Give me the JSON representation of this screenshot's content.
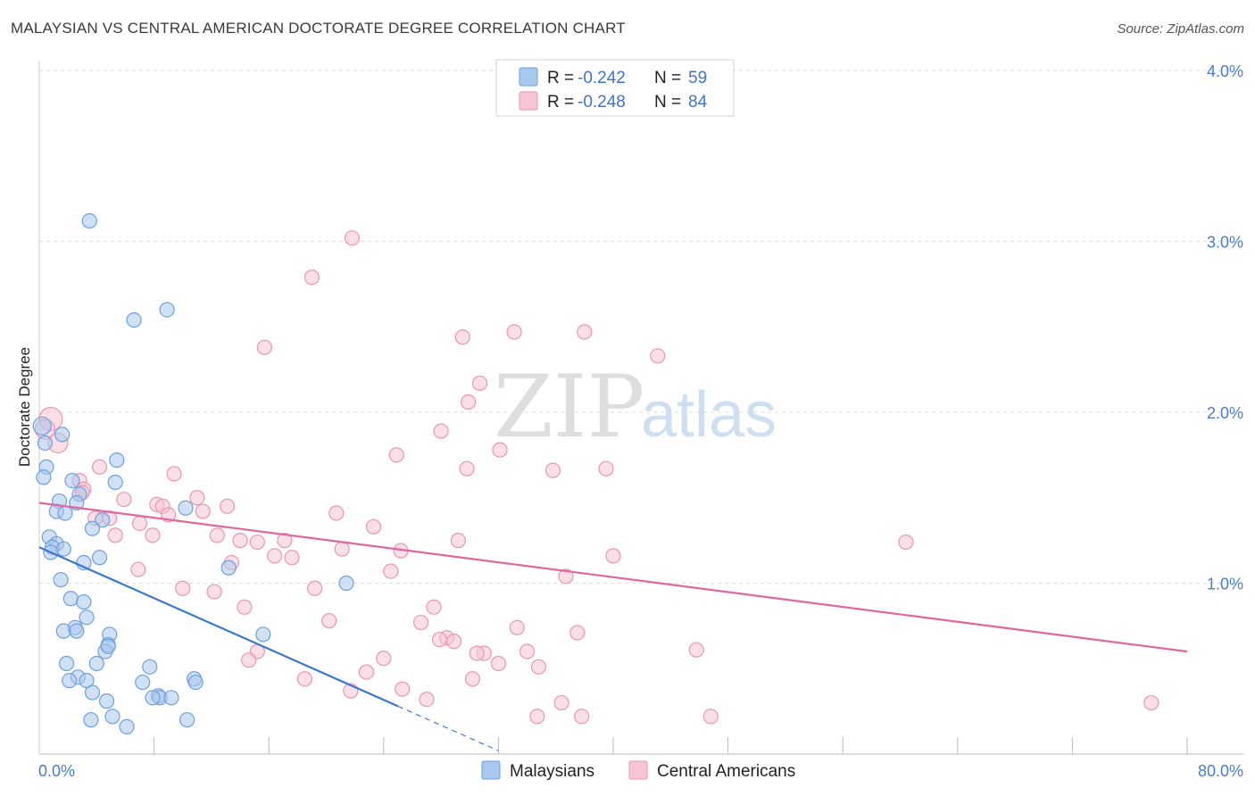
{
  "header": {
    "title": "MALAYSIAN VS CENTRAL AMERICAN DOCTORATE DEGREE CORRELATION CHART",
    "source": "Source: ZipAtlas.com"
  },
  "watermark": {
    "zip": "ZIP",
    "atlas": "atlas"
  },
  "colors": {
    "blue_fill": "#a9c8ef",
    "blue_stroke": "#6f9fdc",
    "blue_line": "#3a78d0",
    "pink_fill": "#f6c4d4",
    "pink_stroke": "#e996b2",
    "pink_line": "#e0679a",
    "grid": "#dddddd",
    "tick_text": "#4a7cc9"
  },
  "legend": {
    "rows": [
      {
        "r_label": "R =",
        "r_value": "-0.242",
        "n_label": "N =",
        "n_value": "59"
      },
      {
        "r_label": "R =",
        "r_value": "-0.248",
        "n_label": "N =",
        "n_value": "84"
      }
    ]
  },
  "chart_data": {
    "type": "scatter",
    "title": "MALAYSIAN VS CENTRAL AMERICAN DOCTORATE DEGREE CORRELATION CHART",
    "xlabel": "",
    "ylabel": "Doctorate Degree",
    "xlim": [
      0,
      80
    ],
    "ylim": [
      0,
      4.2
    ],
    "x_tick_labels": [
      "0.0%",
      "80.0%"
    ],
    "y_ticks": [
      1.0,
      2.0,
      3.0,
      4.0
    ],
    "y_tick_labels": [
      "1.0%",
      "2.0%",
      "3.0%",
      "4.0%"
    ],
    "grid": true,
    "series": [
      {
        "name": "Malaysians",
        "trend": {
          "x0": 0,
          "y0": 1.21,
          "x1": 25,
          "y1": 0.28,
          "dash_to_x": 32
        },
        "points": [
          [
            3.5,
            3.12
          ],
          [
            6.6,
            2.54
          ],
          [
            8.9,
            2.6
          ],
          [
            0.2,
            1.92
          ],
          [
            0.4,
            1.82
          ],
          [
            1.6,
            1.87
          ],
          [
            0.5,
            1.68
          ],
          [
            0.3,
            1.62
          ],
          [
            2.3,
            1.6
          ],
          [
            2.8,
            1.52
          ],
          [
            1.4,
            1.48
          ],
          [
            2.6,
            1.47
          ],
          [
            1.2,
            1.42
          ],
          [
            1.8,
            1.41
          ],
          [
            4.4,
            1.37
          ],
          [
            5.3,
            1.59
          ],
          [
            5.4,
            1.72
          ],
          [
            10.2,
            1.44
          ],
          [
            0.7,
            1.27
          ],
          [
            1.2,
            1.23
          ],
          [
            0.9,
            1.21
          ],
          [
            1.7,
            1.2
          ],
          [
            3.7,
            1.32
          ],
          [
            4.2,
            1.15
          ],
          [
            3.1,
            1.12
          ],
          [
            0.8,
            1.18
          ],
          [
            13.2,
            1.09
          ],
          [
            1.5,
            1.02
          ],
          [
            21.4,
            1.0
          ],
          [
            2.2,
            0.91
          ],
          [
            3.1,
            0.89
          ],
          [
            3.3,
            0.8
          ],
          [
            2.5,
            0.74
          ],
          [
            1.7,
            0.72
          ],
          [
            2.6,
            0.72
          ],
          [
            4.9,
            0.7
          ],
          [
            4.8,
            0.64
          ],
          [
            4.6,
            0.6
          ],
          [
            15.6,
            0.7
          ],
          [
            1.9,
            0.53
          ],
          [
            4.0,
            0.53
          ],
          [
            7.7,
            0.51
          ],
          [
            2.7,
            0.45
          ],
          [
            3.3,
            0.43
          ],
          [
            2.1,
            0.43
          ],
          [
            7.2,
            0.42
          ],
          [
            10.8,
            0.44
          ],
          [
            10.9,
            0.42
          ],
          [
            3.7,
            0.36
          ],
          [
            8.3,
            0.34
          ],
          [
            8.4,
            0.33
          ],
          [
            9.2,
            0.33
          ],
          [
            4.7,
            0.31
          ],
          [
            5.1,
            0.22
          ],
          [
            10.3,
            0.2
          ],
          [
            3.6,
            0.2
          ],
          [
            6.1,
            0.16
          ],
          [
            4.8,
            0.63
          ],
          [
            7.9,
            0.33
          ]
        ]
      },
      {
        "name": "Central Americans",
        "trend": {
          "x0": 0,
          "y0": 1.47,
          "x1": 80,
          "y1": 0.6
        },
        "points": [
          [
            0.8,
            1.96
          ],
          [
            0.4,
            1.9
          ],
          [
            1.3,
            1.82
          ],
          [
            21.8,
            3.02
          ],
          [
            19.0,
            2.79
          ],
          [
            15.7,
            2.38
          ],
          [
            33.1,
            2.47
          ],
          [
            38.0,
            2.47
          ],
          [
            29.5,
            2.44
          ],
          [
            43.1,
            2.33
          ],
          [
            29.9,
            2.06
          ],
          [
            30.7,
            2.17
          ],
          [
            28.0,
            1.89
          ],
          [
            32.1,
            1.78
          ],
          [
            29.8,
            1.67
          ],
          [
            35.8,
            1.66
          ],
          [
            39.5,
            1.67
          ],
          [
            24.9,
            1.75
          ],
          [
            4.2,
            1.68
          ],
          [
            9.4,
            1.64
          ],
          [
            2.8,
            1.6
          ],
          [
            3.1,
            1.55
          ],
          [
            5.9,
            1.49
          ],
          [
            8.2,
            1.46
          ],
          [
            11.0,
            1.5
          ],
          [
            13.1,
            1.45
          ],
          [
            8.6,
            1.45
          ],
          [
            4.9,
            1.38
          ],
          [
            7.0,
            1.35
          ],
          [
            11.4,
            1.42
          ],
          [
            20.7,
            1.41
          ],
          [
            3.9,
            1.38
          ],
          [
            5.3,
            1.28
          ],
          [
            7.9,
            1.28
          ],
          [
            12.4,
            1.28
          ],
          [
            14.0,
            1.25
          ],
          [
            15.2,
            1.24
          ],
          [
            17.1,
            1.25
          ],
          [
            23.3,
            1.33
          ],
          [
            25.2,
            1.19
          ],
          [
            29.2,
            1.25
          ],
          [
            60.4,
            1.24
          ],
          [
            13.4,
            1.12
          ],
          [
            16.4,
            1.16
          ],
          [
            17.6,
            1.15
          ],
          [
            21.1,
            1.2
          ],
          [
            24.5,
            1.07
          ],
          [
            40.0,
            1.16
          ],
          [
            36.7,
            1.04
          ],
          [
            6.9,
            1.08
          ],
          [
            10.0,
            0.97
          ],
          [
            12.2,
            0.95
          ],
          [
            14.3,
            0.86
          ],
          [
            19.2,
            0.97
          ],
          [
            20.2,
            0.78
          ],
          [
            26.6,
            0.77
          ],
          [
            27.5,
            0.86
          ],
          [
            28.4,
            0.68
          ],
          [
            28.9,
            0.66
          ],
          [
            33.3,
            0.74
          ],
          [
            37.5,
            0.71
          ],
          [
            15.2,
            0.6
          ],
          [
            14.6,
            0.55
          ],
          [
            18.5,
            0.44
          ],
          [
            22.8,
            0.48
          ],
          [
            24.0,
            0.56
          ],
          [
            25.3,
            0.38
          ],
          [
            27.0,
            0.32
          ],
          [
            30.2,
            0.44
          ],
          [
            31.0,
            0.59
          ],
          [
            32.0,
            0.53
          ],
          [
            34.0,
            0.6
          ],
          [
            34.8,
            0.51
          ],
          [
            45.8,
            0.61
          ],
          [
            34.7,
            0.22
          ],
          [
            36.4,
            0.3
          ],
          [
            37.8,
            0.22
          ],
          [
            46.8,
            0.22
          ],
          [
            77.5,
            0.3
          ],
          [
            30.5,
            0.59
          ],
          [
            21.7,
            0.37
          ],
          [
            27.9,
            0.67
          ],
          [
            3.0,
            1.53
          ],
          [
            9.0,
            1.4
          ]
        ]
      }
    ]
  },
  "bottom_legend": {
    "items": [
      "Malaysians",
      "Central Americans"
    ]
  }
}
